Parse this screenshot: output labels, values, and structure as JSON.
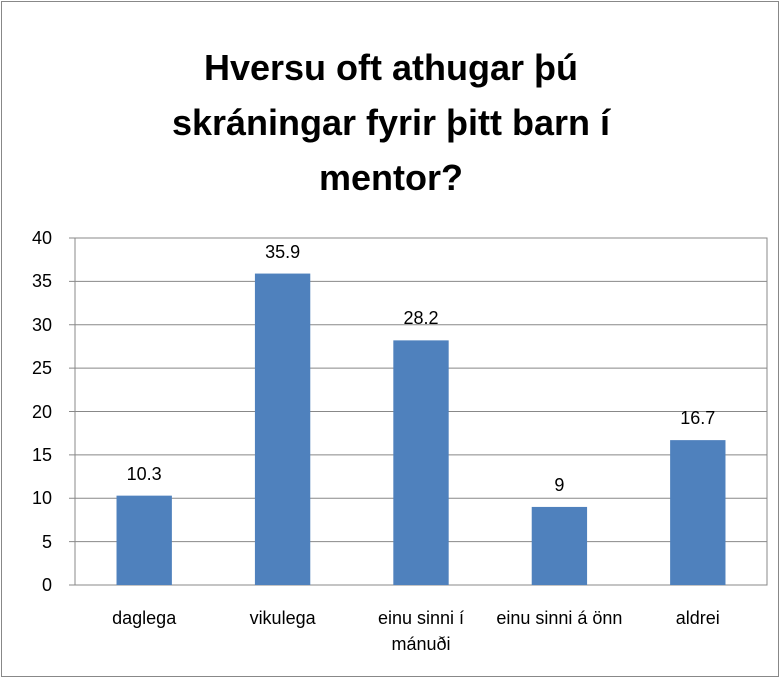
{
  "chart_data": {
    "type": "bar",
    "title": "Hversu oft athugar þú skráningar fyrir þitt barn í mentor?",
    "categories": [
      "daglega",
      "vikulega",
      "einu sinni í mánuði",
      "einu sinni á önn",
      "aldrei"
    ],
    "values": [
      10.3,
      35.9,
      28.2,
      9,
      16.7
    ],
    "color": "#4f81bd",
    "ylim": [
      0,
      40
    ],
    "yticks": [
      0,
      5,
      10,
      15,
      20,
      25,
      30,
      35,
      40
    ],
    "grid": true
  }
}
